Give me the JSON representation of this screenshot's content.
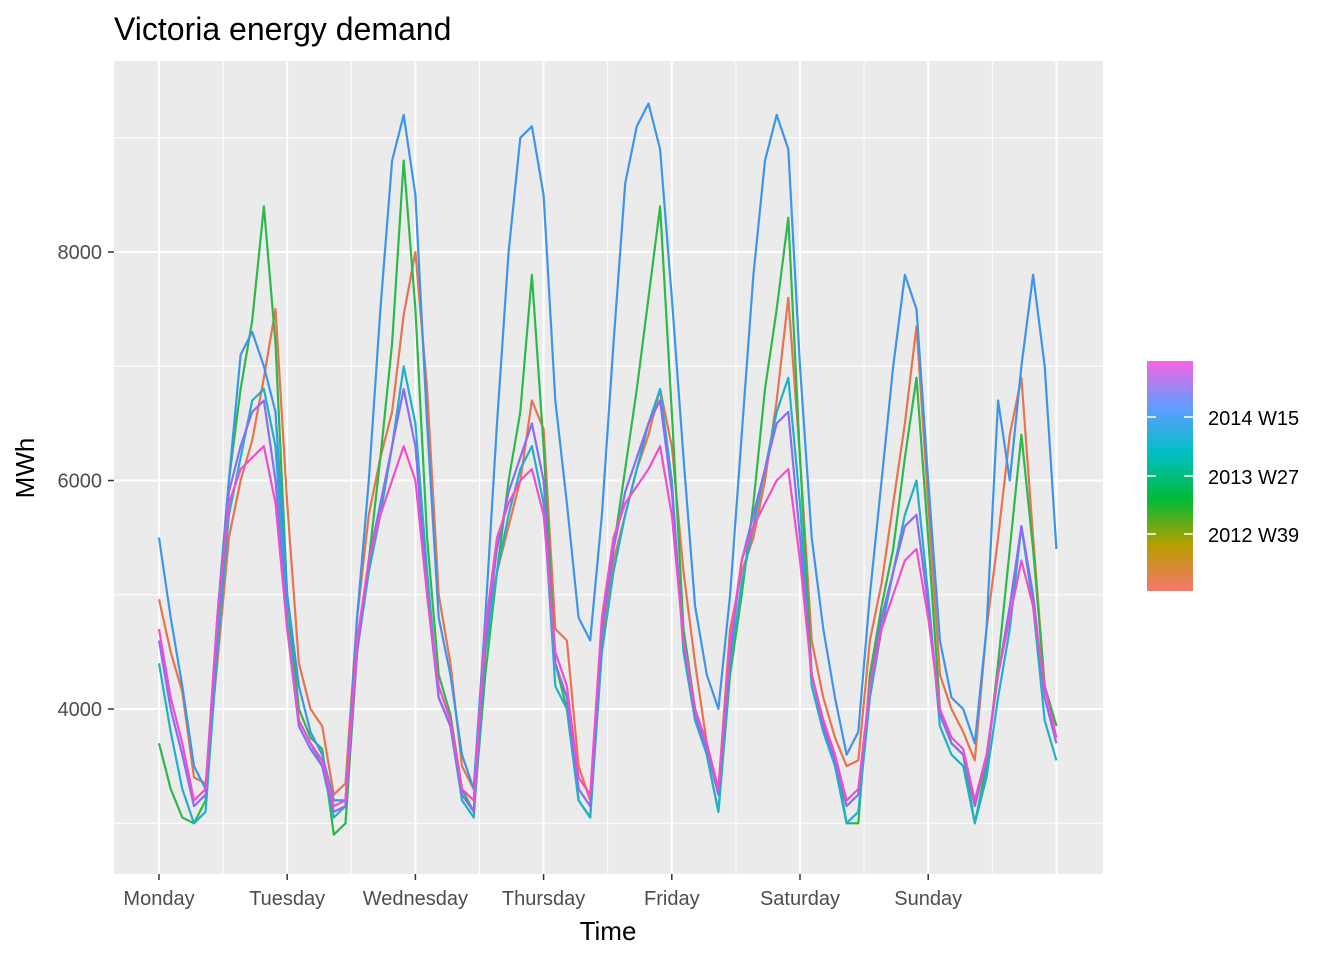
{
  "chart_data": {
    "type": "line",
    "title": "Victoria energy demand",
    "xlabel": "Time",
    "ylabel": "MWh",
    "ylim": [
      2600,
      9600
    ],
    "yticks": [
      4000,
      6000,
      8000
    ],
    "xticks": [
      "Monday",
      "Tuesday",
      "Wednesday",
      "Thursday",
      "Friday",
      "Saturday",
      "Sunday"
    ],
    "grid": true,
    "legend": {
      "position": "right",
      "type": "colourbar",
      "labels": [
        "2014 W15",
        "2013 W27",
        "2012 W39"
      ],
      "colors": [
        "#f8766d",
        "#b79f00",
        "#00ba38",
        "#00bfc4",
        "#619cff",
        "#f564e3"
      ]
    },
    "series_groups": [
      {
        "color": "#e8734f",
        "values": [
          4960,
          4500,
          4150,
          3400,
          3350,
          4400,
          5500,
          6000,
          6350,
          6900,
          7500,
          5800,
          4400,
          4000,
          3850,
          3250,
          3350,
          4800,
          5700,
          6200,
          6600,
          7450,
          8000,
          6800,
          5000,
          4400,
          3500,
          3300,
          4700,
          5200,
          5600,
          6000,
          6700,
          6450,
          4700,
          4600,
          3500,
          3200,
          4600,
          5300,
          5700,
          6100,
          6400,
          6800,
          6300,
          5200,
          4400,
          3700,
          3300,
          4700,
          5200,
          5500,
          6000,
          6700,
          7600,
          6200,
          4600,
          4100,
          3750,
          3500,
          3550,
          4600,
          5100,
          5800,
          6500,
          7350,
          5800,
          4300,
          4000,
          3800,
          3550,
          4700,
          5500,
          6400,
          6900,
          5500,
          4200,
          3850
        ]
      },
      {
        "color": "#2db84a",
        "values": [
          3700,
          3300,
          3050,
          3000,
          3200,
          4800,
          6000,
          6800,
          7400,
          8400,
          7200,
          5000,
          4000,
          3750,
          3650,
          2900,
          3000,
          4500,
          5300,
          6200,
          7200,
          8800,
          7500,
          5500,
          4300,
          3950,
          3300,
          3100,
          4300,
          5200,
          6000,
          6600,
          7800,
          6300,
          4400,
          4000,
          3200,
          3050,
          4700,
          5400,
          6100,
          6800,
          7600,
          8400,
          6600,
          4700,
          4000,
          3600,
          3100,
          4300,
          5000,
          5800,
          6800,
          7500,
          8300,
          6200,
          4300,
          3900,
          3600,
          3000,
          3000,
          4300,
          4900,
          5400,
          6200,
          6900,
          5500,
          4000,
          3700,
          3600,
          3000,
          3500,
          4400,
          5400,
          6400,
          5400,
          4200,
          3850
        ]
      },
      {
        "color": "#21b0c9",
        "values": [
          4400,
          3800,
          3300,
          3000,
          3100,
          4500,
          5700,
          6200,
          6700,
          6800,
          6300,
          4800,
          3900,
          3700,
          3500,
          3050,
          3150,
          4500,
          5200,
          5700,
          6300,
          7000,
          6500,
          5200,
          4100,
          3850,
          3200,
          3050,
          4500,
          5200,
          5700,
          6100,
          6300,
          5800,
          4200,
          4000,
          3200,
          3050,
          4500,
          5200,
          5700,
          6100,
          6500,
          6800,
          6000,
          4500,
          3900,
          3600,
          3100,
          4400,
          5100,
          5600,
          6100,
          6600,
          6900,
          5800,
          4200,
          3800,
          3500,
          3000,
          3100,
          4100,
          4700,
          5200,
          5700,
          6000,
          5000,
          3850,
          3600,
          3500,
          3000,
          3400,
          4100,
          4700,
          5600,
          4900,
          3900,
          3550
        ]
      },
      {
        "color": "#3d95ea",
        "values": [
          5500,
          4800,
          4200,
          3500,
          3300,
          4800,
          6000,
          7100,
          7300,
          7000,
          6600,
          5000,
          4200,
          3800,
          3600,
          3200,
          3200,
          4800,
          6000,
          7500,
          8800,
          9200,
          8500,
          6500,
          4800,
          4300,
          3600,
          3300,
          4800,
          6500,
          8000,
          9000,
          9100,
          8500,
          6700,
          5800,
          4800,
          4600,
          5700,
          7200,
          8600,
          9100,
          9300,
          8900,
          7600,
          6200,
          4900,
          4300,
          4000,
          5000,
          6400,
          7800,
          8800,
          9200,
          8900,
          7000,
          5500,
          4700,
          4100,
          3600,
          3800,
          5000,
          6000,
          7000,
          7800,
          7500,
          6000,
          4600,
          4100,
          4000,
          3700,
          4700,
          6700,
          6000,
          7000,
          7800,
          7000,
          5400
        ]
      },
      {
        "color": "#8d6cf4",
        "values": [
          4600,
          4000,
          3600,
          3150,
          3250,
          4700,
          5900,
          6300,
          6600,
          6700,
          6000,
          4700,
          3850,
          3650,
          3500,
          3100,
          3150,
          4500,
          5300,
          5800,
          6300,
          6800,
          6300,
          5000,
          4100,
          3850,
          3250,
          3100,
          4600,
          5400,
          5900,
          6200,
          6500,
          6000,
          4400,
          4100,
          3300,
          3150,
          4700,
          5400,
          5900,
          6200,
          6500,
          6700,
          5900,
          4600,
          3950,
          3650,
          3250,
          4500,
          5300,
          5700,
          6100,
          6500,
          6600,
          5500,
          4300,
          3850,
          3550,
          3150,
          3250,
          4200,
          4800,
          5200,
          5600,
          5700,
          4900,
          3950,
          3700,
          3600,
          3150,
          3550,
          4300,
          4900,
          5600,
          5000,
          4100,
          3700
        ]
      },
      {
        "color": "#f24ecc",
        "values": [
          4700,
          4100,
          3700,
          3200,
          3300,
          4800,
          5800,
          6100,
          6200,
          6300,
          5800,
          4700,
          3900,
          3700,
          3550,
          3150,
          3200,
          4600,
          5300,
          5700,
          6000,
          6300,
          6000,
          5000,
          4200,
          3900,
          3300,
          3200,
          4700,
          5500,
          5800,
          6000,
          6100,
          5700,
          4500,
          4200,
          3400,
          3250,
          4800,
          5500,
          5800,
          5950,
          6100,
          6300,
          5700,
          4600,
          4000,
          3700,
          3300,
          4600,
          5300,
          5600,
          5800,
          6000,
          6100,
          5300,
          4300,
          3900,
          3600,
          3200,
          3300,
          4200,
          4700,
          5000,
          5300,
          5400,
          4800,
          4000,
          3750,
          3650,
          3200,
          3600,
          4300,
          4800,
          5300,
          4900,
          4200,
          3750
        ]
      }
    ]
  }
}
